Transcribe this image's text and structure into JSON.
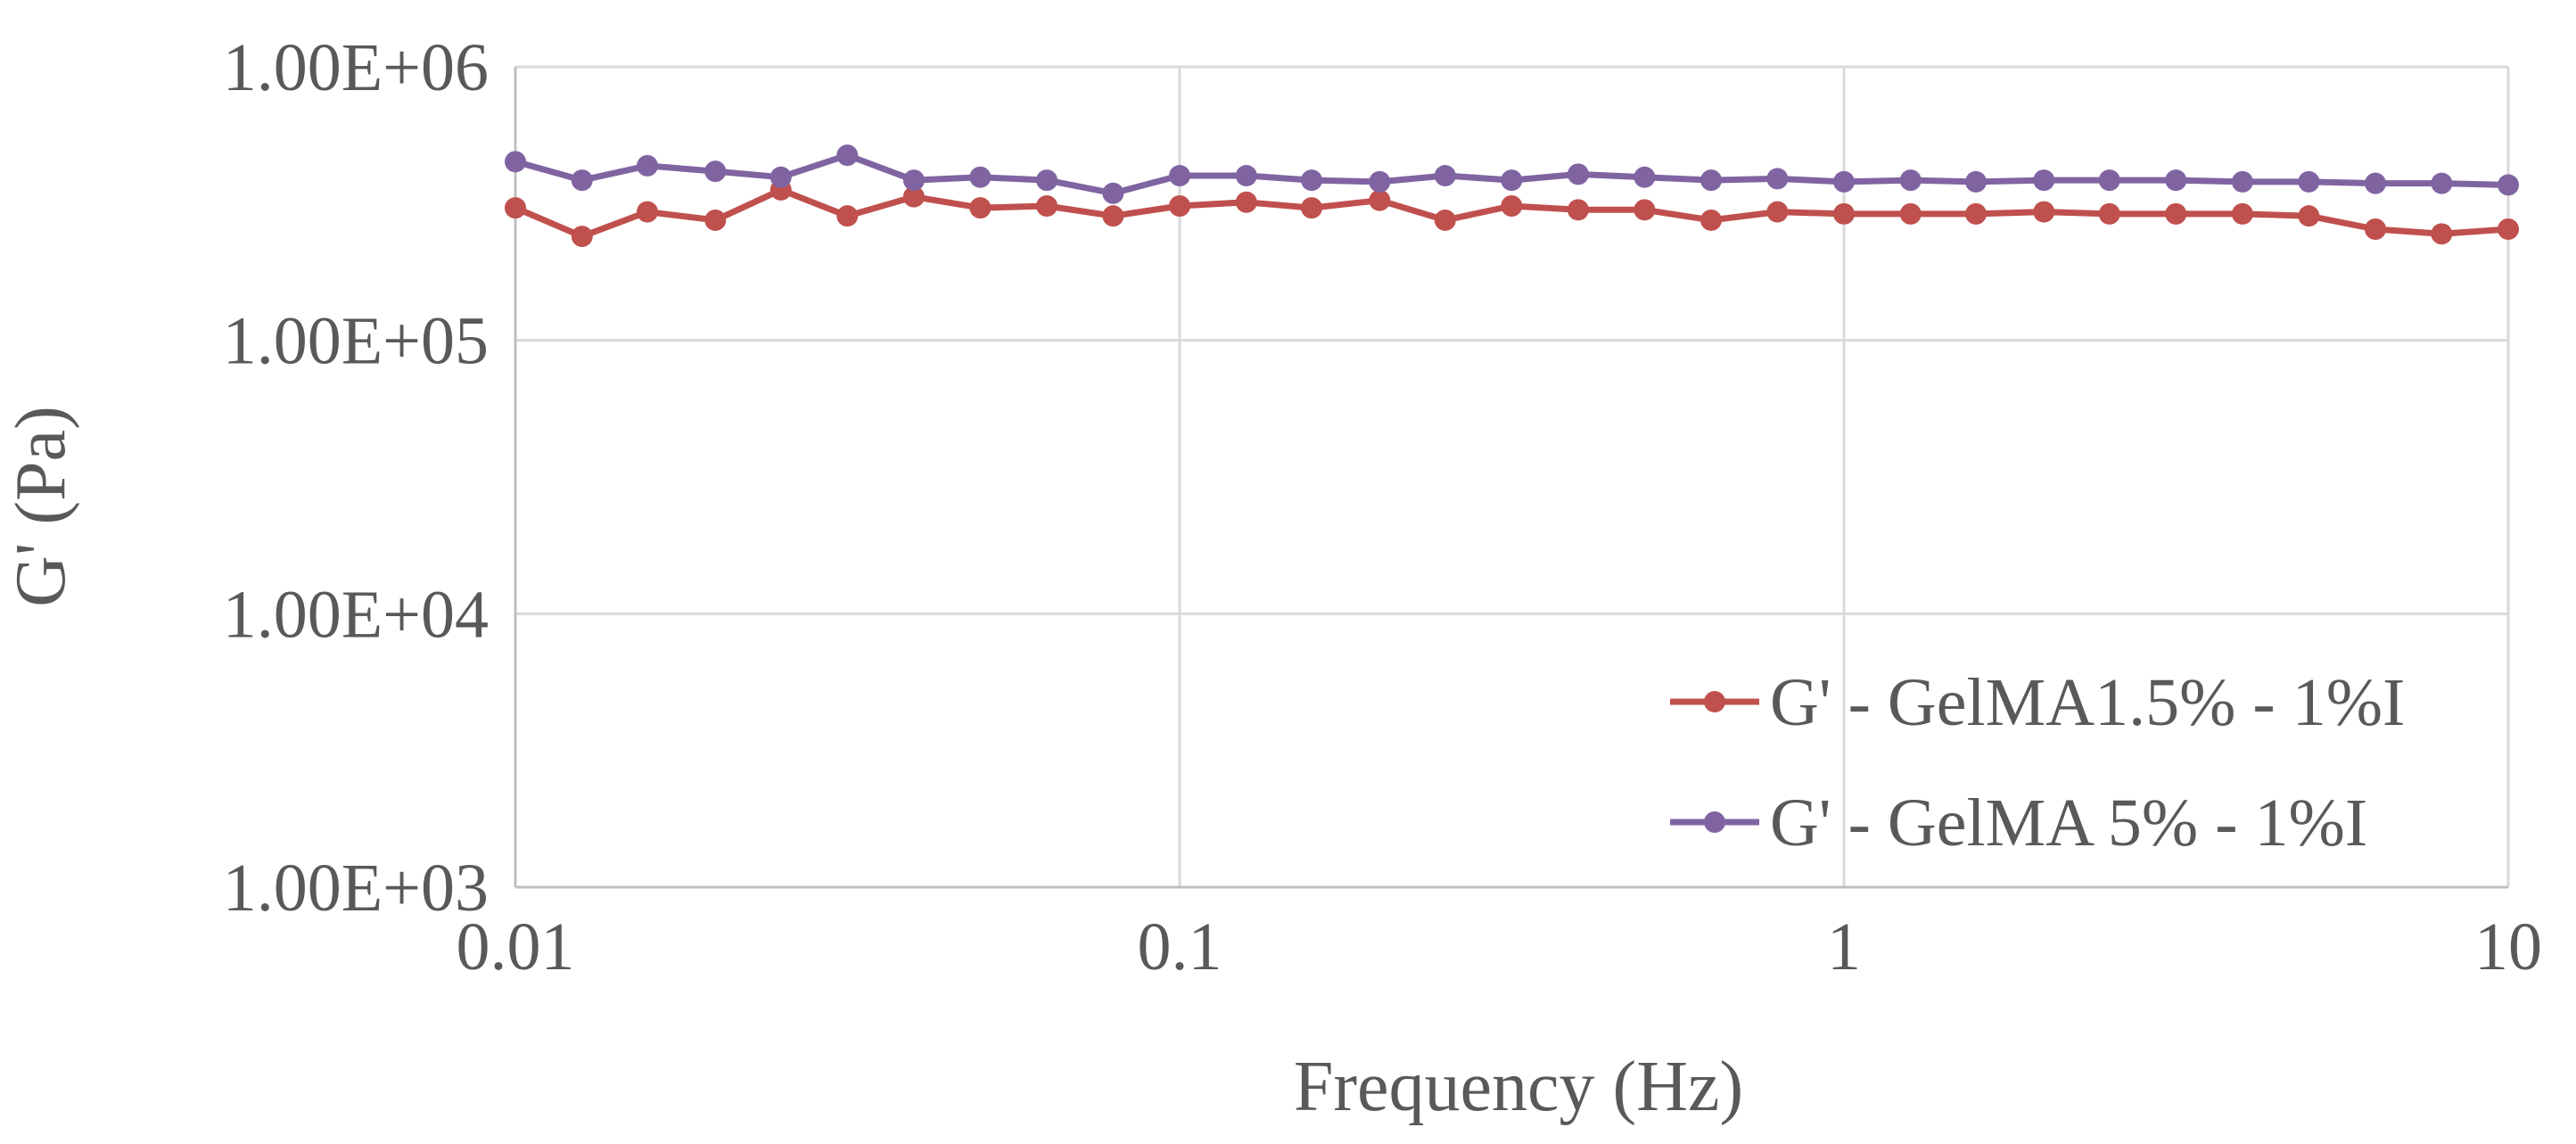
{
  "chart_data": {
    "type": "line",
    "title": "",
    "xlabel": "Frequency (Hz)",
    "ylabel": "G' (Pa)",
    "xscale": "log",
    "yscale": "log",
    "xlim": [
      0.01,
      10
    ],
    "ylim": [
      1000,
      1000000
    ],
    "x_ticks": [
      0.01,
      0.1,
      1,
      10
    ],
    "x_tick_labels": [
      "0.01",
      "0.1",
      "1",
      "10"
    ],
    "y_ticks": [
      1000,
      10000,
      100000,
      1000000
    ],
    "y_tick_labels": [
      "1.00E+03",
      "1.00E+04",
      "1.00E+05",
      "1.00E+06"
    ],
    "grid": true,
    "legend_position": "bottom-right",
    "x": [
      0.01,
      0.0126,
      0.0158,
      0.02,
      0.0251,
      0.0316,
      0.0398,
      0.0501,
      0.0631,
      0.0794,
      0.1,
      0.126,
      0.158,
      0.2,
      0.251,
      0.316,
      0.398,
      0.501,
      0.631,
      0.794,
      1,
      1.26,
      1.58,
      2,
      2.51,
      3.16,
      3.98,
      5.01,
      6.31,
      7.94,
      10
    ],
    "series": [
      {
        "name": "G' - GelMA1.5% - 1%I",
        "color": "#c0504d",
        "values": [
          305000,
          240000,
          295000,
          275000,
          355000,
          285000,
          335000,
          305000,
          310000,
          285000,
          310000,
          320000,
          305000,
          325000,
          275000,
          310000,
          300000,
          300000,
          275000,
          295000,
          290000,
          290000,
          290000,
          295000,
          290000,
          290000,
          290000,
          285000,
          255000,
          245000,
          255000
        ]
      },
      {
        "name": "G' - GelMA 5% - 1%I",
        "color": "#8064a2",
        "values": [
          450000,
          385000,
          435000,
          415000,
          395000,
          475000,
          385000,
          395000,
          385000,
          345000,
          400000,
          400000,
          385000,
          380000,
          400000,
          385000,
          405000,
          395000,
          385000,
          390000,
          380000,
          385000,
          380000,
          385000,
          385000,
          385000,
          380000,
          380000,
          375000,
          375000,
          370000
        ]
      }
    ]
  }
}
